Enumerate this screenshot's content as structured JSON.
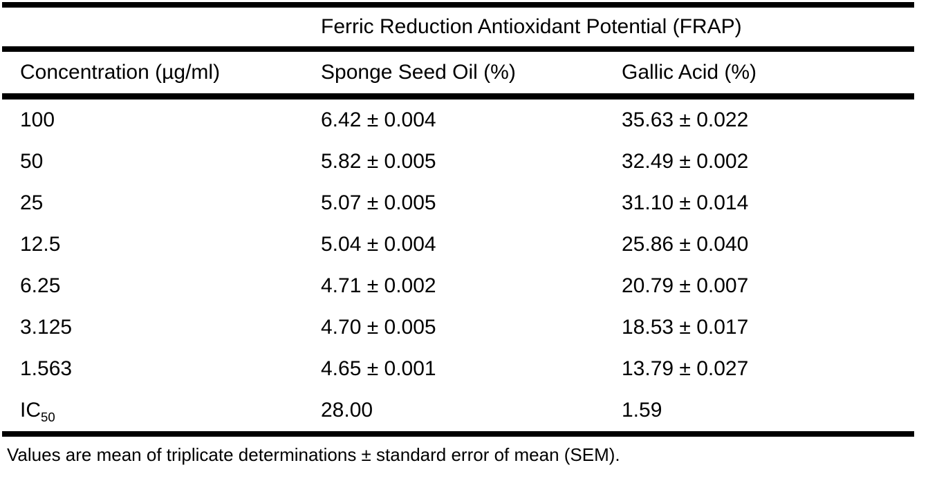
{
  "table": {
    "spanner_title": "Ferric Reduction Antioxidant Potential (FRAP)",
    "columns": [
      "Concentration (µg/ml)",
      "Sponge Seed Oil (%)",
      "Gallic Acid (%)"
    ],
    "rows": [
      {
        "concentration": "100",
        "sponge_seed_oil": "6.42 ± 0.004",
        "gallic_acid": "35.63 ± 0.022"
      },
      {
        "concentration": "50",
        "sponge_seed_oil": "5.82 ± 0.005",
        "gallic_acid": "32.49 ± 0.002"
      },
      {
        "concentration": "25",
        "sponge_seed_oil": "5.07 ± 0.005",
        "gallic_acid": "31.10 ± 0.014"
      },
      {
        "concentration": "12.5",
        "sponge_seed_oil": "5.04 ± 0.004",
        "gallic_acid": "25.86 ± 0.040"
      },
      {
        "concentration": "6.25",
        "sponge_seed_oil": "4.71 ± 0.002",
        "gallic_acid": "20.79 ± 0.007"
      },
      {
        "concentration": "3.125",
        "sponge_seed_oil": "4.70 ± 0.005",
        "gallic_acid": "18.53 ± 0.017"
      },
      {
        "concentration": "1.563",
        "sponge_seed_oil": "4.65 ± 0.001",
        "gallic_acid": "13.79 ± 0.027"
      },
      {
        "concentration": {
          "base": "IC",
          "sub": "50"
        },
        "sponge_seed_oil": "28.00",
        "gallic_acid": "1.59"
      }
    ],
    "footnote": "Values are mean of triplicate determinations ± standard error of mean (SEM).",
    "text_color": "#000000",
    "background_color": "#ffffff",
    "rule_color": "#000000"
  }
}
